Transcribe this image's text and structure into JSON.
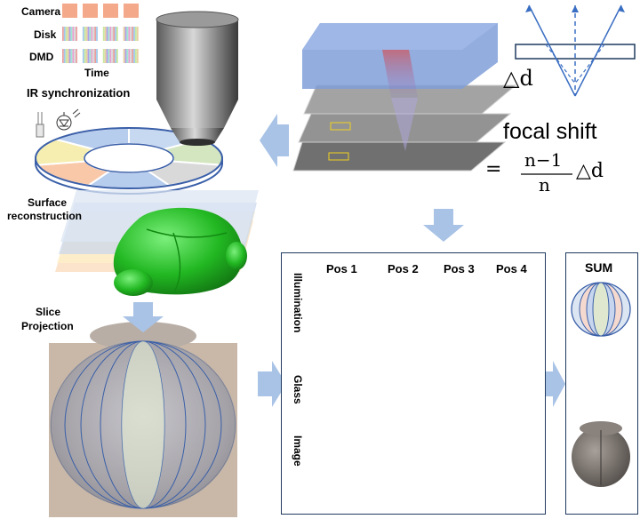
{
  "sync": {
    "camera_label": "Camera",
    "disk_label": "Disk",
    "dmd_label": "DMD",
    "time_label": "Time",
    "ir_label": "IR synchronization"
  },
  "surface": {
    "label": "Surface\nreconstruction",
    "line1": "Surface",
    "line2": "reconstruction"
  },
  "slice": {
    "line1": "Slice",
    "line2": "Projection"
  },
  "optics": {
    "delta_label": "△d",
    "focal_shift_label": "focal shift",
    "equals": "=",
    "numerator": "n−1",
    "denominator": "n",
    "delta_after": "△d"
  },
  "panel": {
    "positions": [
      "Pos 1",
      "Pos 2",
      "Pos 3",
      "Pos 4"
    ],
    "row_labels": {
      "illumination": "Illumination",
      "glass": "Glass",
      "image": "Image"
    },
    "sum_label": "SUM"
  },
  "colors": {
    "arrow": "#a9c3e6",
    "panel_border": "#1f3a5f",
    "brain_green": "#2ec22e",
    "ellipse_stroke": "#3a5fa8",
    "blue_fill": "#dce6f3",
    "pink_fill": "#f5d9cf",
    "green_fill": "#dfe8cf"
  }
}
